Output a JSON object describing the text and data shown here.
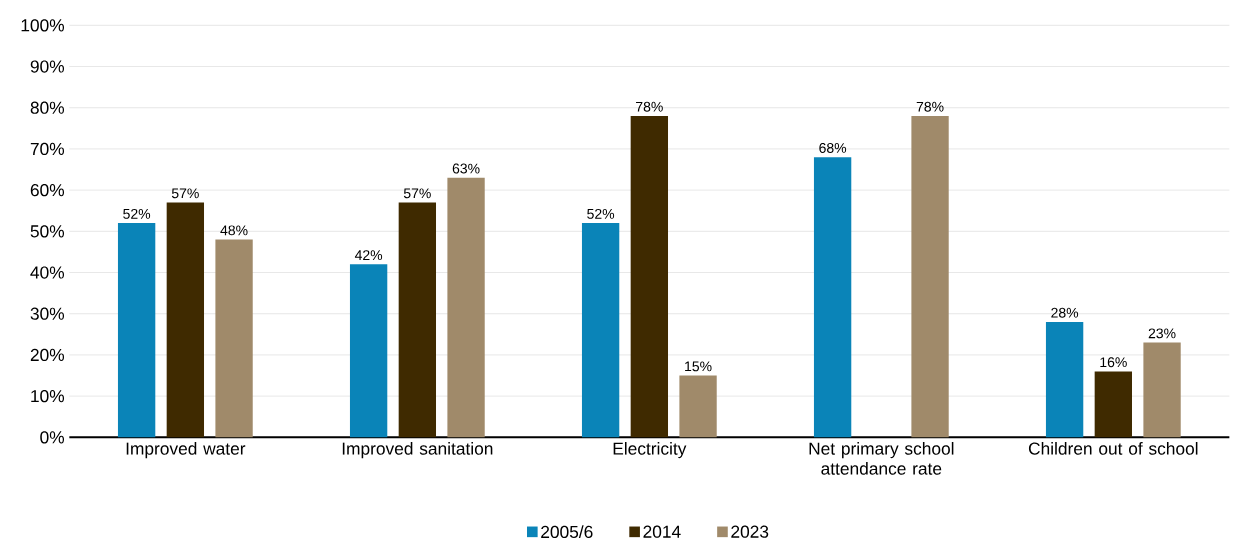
{
  "chart_data": {
    "type": "bar",
    "categories": [
      "Improved water",
      "Improved sanitation",
      "Electricity",
      "Net primary school attendance rate",
      "Children out of school"
    ],
    "series": [
      {
        "name": "2005/6",
        "color": "#0a84b8",
        "values": [
          52,
          42,
          52,
          68,
          28
        ],
        "value_labels": [
          "52%",
          "42%",
          "52%",
          "68%",
          "28%"
        ]
      },
      {
        "name": "2014",
        "color": "#3f2a00",
        "values": [
          57,
          57,
          78,
          null,
          16
        ],
        "value_labels": [
          "57%",
          "57%",
          "78%",
          null,
          "16%"
        ]
      },
      {
        "name": "2023",
        "color": "#a08a6a",
        "values": [
          48,
          63,
          15,
          78,
          23
        ],
        "value_labels": [
          "48%",
          "63%",
          "15%",
          "78%",
          "23%"
        ]
      }
    ],
    "ylim": [
      0,
      100
    ],
    "yticks": [
      {
        "value": 0,
        "label": "0%"
      },
      {
        "value": 10,
        "label": "10%"
      },
      {
        "value": 20,
        "label": "20%"
      },
      {
        "value": 30,
        "label": "30%"
      },
      {
        "value": 40,
        "label": "40%"
      },
      {
        "value": 50,
        "label": "50%"
      },
      {
        "value": 60,
        "label": "60%"
      },
      {
        "value": 70,
        "label": "70%"
      },
      {
        "value": 80,
        "label": "80%"
      },
      {
        "value": 90,
        "label": "90%"
      },
      {
        "value": 100,
        "label": "100%"
      }
    ],
    "grid": "y",
    "legend": "bottom"
  }
}
